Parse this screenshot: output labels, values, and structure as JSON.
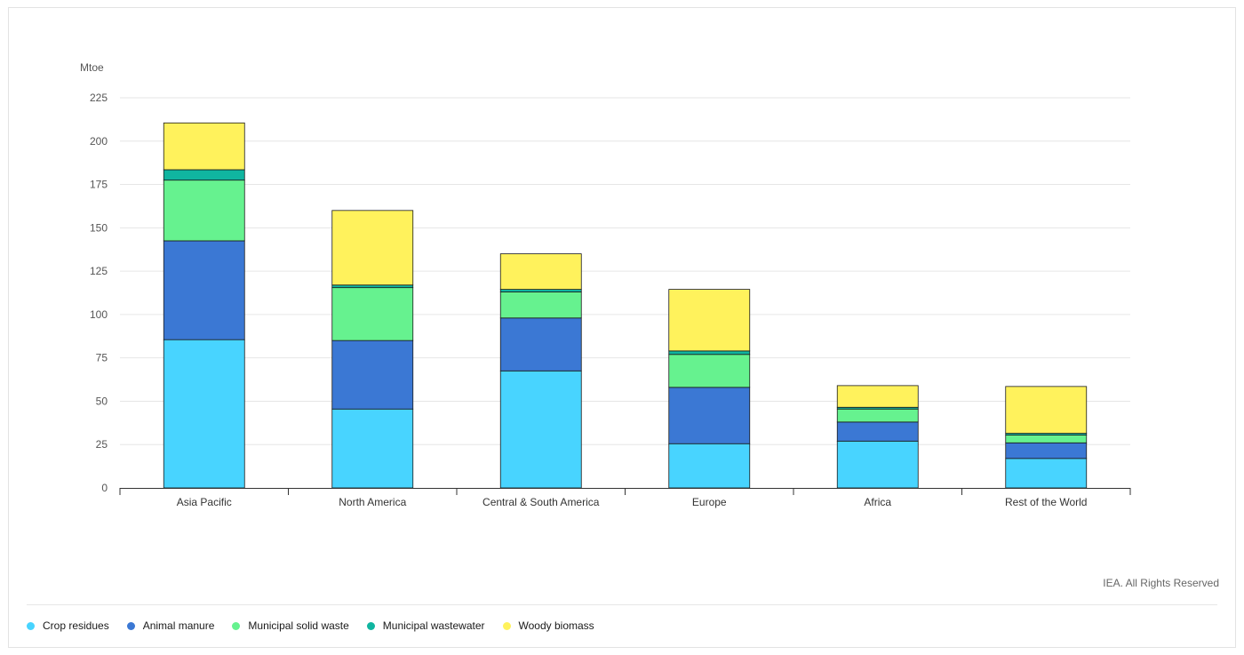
{
  "credit": "IEA. All Rights Reserved",
  "chart_data": {
    "type": "bar",
    "stacked": true,
    "ylabel": "Mtoe",
    "ylim": [
      0,
      225
    ],
    "yticks": [
      0,
      25,
      50,
      75,
      100,
      125,
      150,
      175,
      200,
      225
    ],
    "grid": true,
    "legend_position": "bottom",
    "categories": [
      "Asia Pacific",
      "North America",
      "Central & South America",
      "Europe",
      "Africa",
      "Rest of the World"
    ],
    "series": [
      {
        "name": "Crop residues",
        "color": "#48d4ff",
        "values": [
          85.5,
          45.5,
          67.5,
          25.5,
          27,
          17
        ]
      },
      {
        "name": "Animal manure",
        "color": "#3b78d4",
        "values": [
          57,
          39.5,
          30.5,
          32.5,
          11,
          9
        ]
      },
      {
        "name": "Municipal solid waste",
        "color": "#66f28f",
        "values": [
          35,
          30.5,
          15,
          19,
          7.5,
          4.5
        ]
      },
      {
        "name": "Municipal wastewater",
        "color": "#10b5a0",
        "values": [
          6,
          1.5,
          1.5,
          2,
          1,
          1
        ]
      },
      {
        "name": "Woody biomass",
        "color": "#fff25c",
        "values": [
          27,
          43,
          20.5,
          35.5,
          12.5,
          27
        ]
      }
    ]
  }
}
